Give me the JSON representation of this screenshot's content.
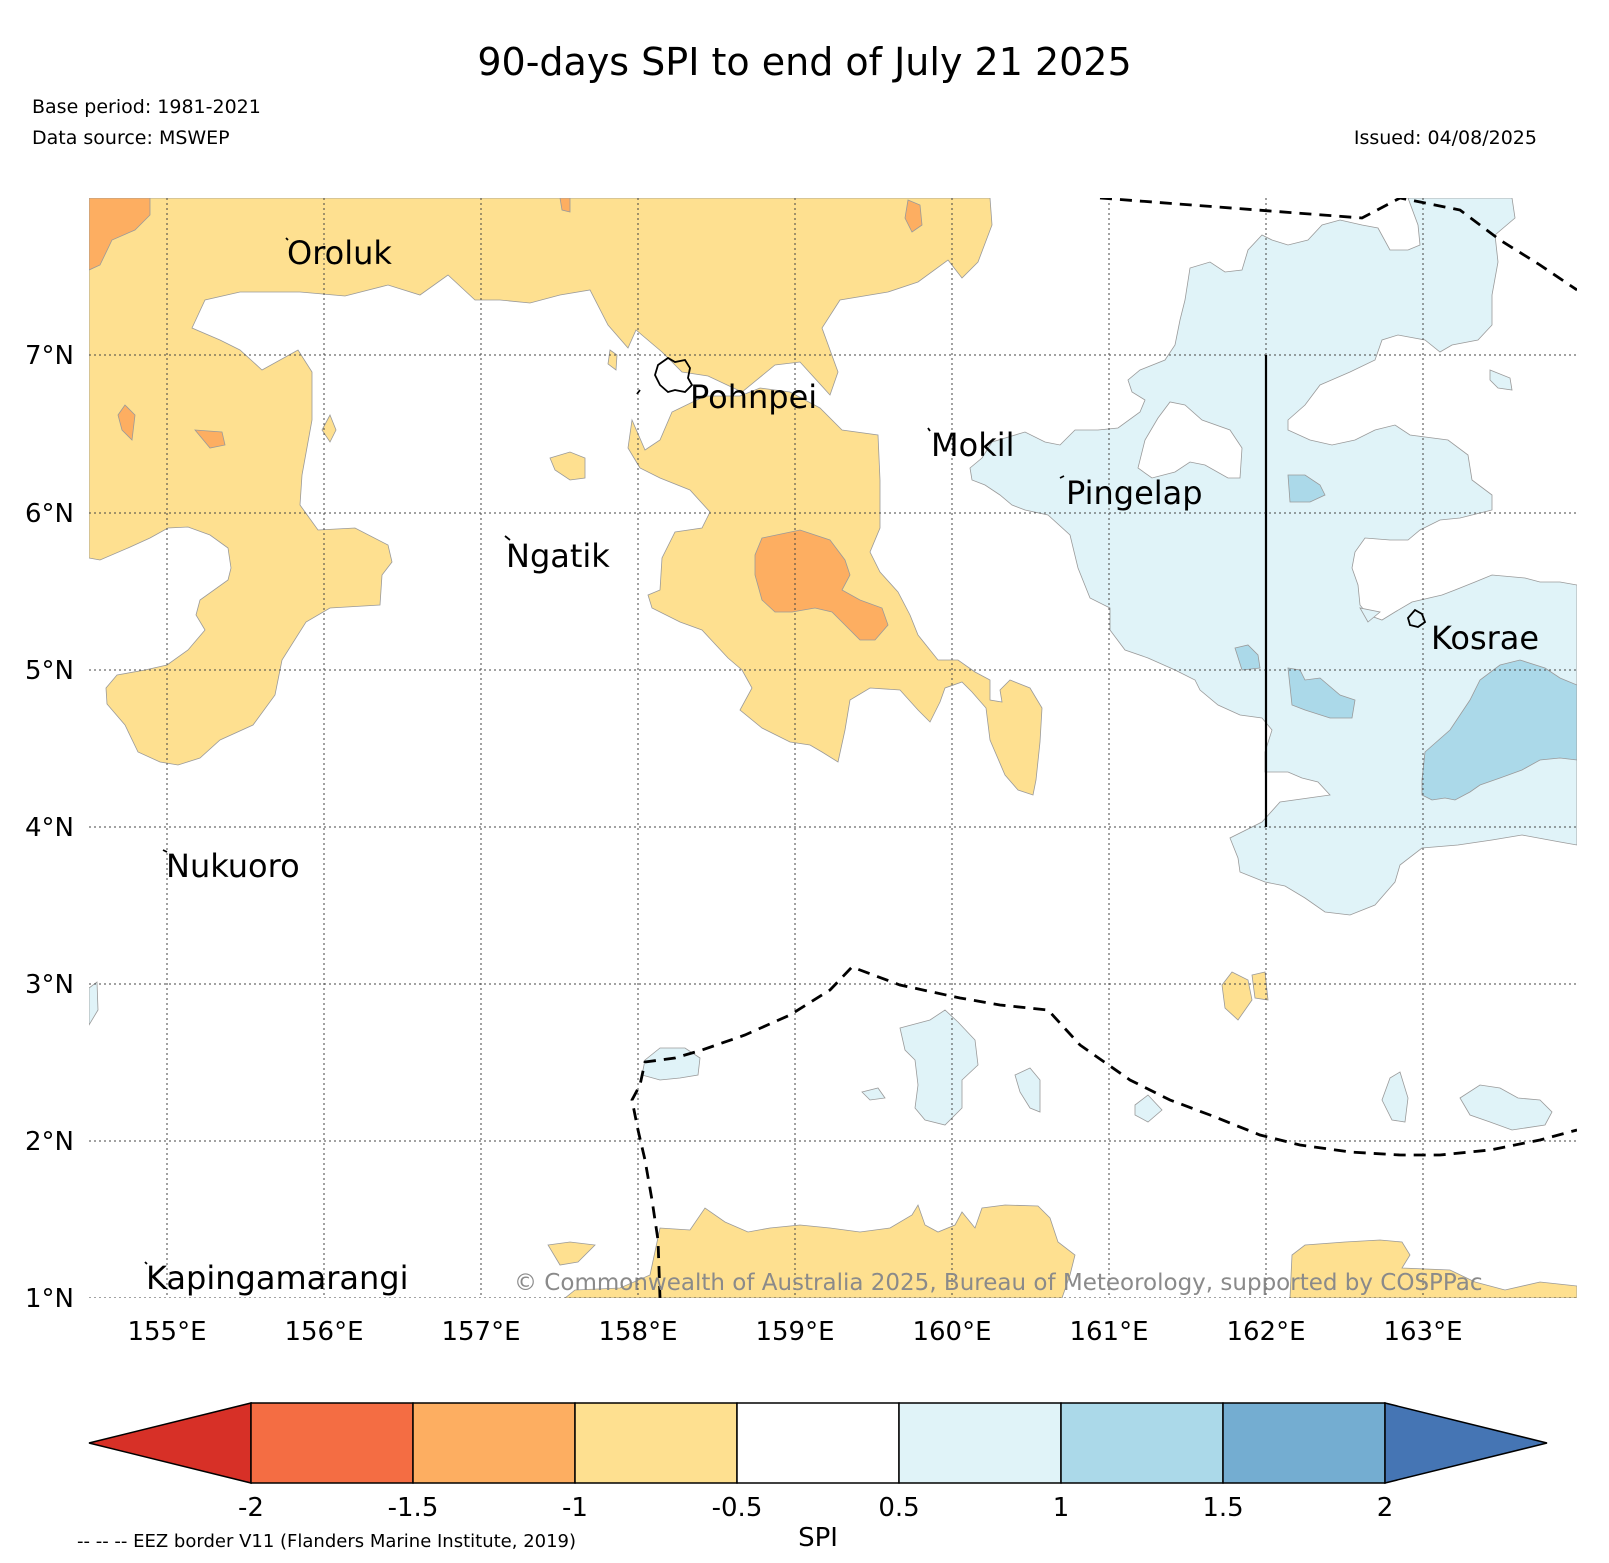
{
  "title": "90-days SPI to end of July 21 2025",
  "base_period": "Base period: 1981-2021",
  "data_source": "Data source: MSWEP",
  "issued": "Issued: 04/08/2025",
  "map": {
    "lon_ticks": [
      "155°E",
      "156°E",
      "157°E",
      "158°E",
      "159°E",
      "160°E",
      "161°E",
      "162°E",
      "163°E"
    ],
    "lat_ticks": [
      "7°N",
      "6°N",
      "5°N",
      "4°N",
      "3°N",
      "2°N",
      "1°N"
    ],
    "places": [
      "Oroluk",
      "Pohnpei",
      "Mokil",
      "Pingelap",
      "Ngatik",
      "Kosrae",
      "Nukuoro",
      "Kapingamarangi"
    ],
    "copyright": "© Commonwealth of Australia 2025, Bureau of Meteorology, supported by COSPPac"
  },
  "colorbar": {
    "title": "SPI",
    "tick_labels": [
      "-2",
      "-1.5",
      "-1",
      "-0.5",
      "0.5",
      "1",
      "1.5",
      "2"
    ],
    "colors": [
      "#d73027",
      "#f46d43",
      "#fdae61",
      "#fee090",
      "#ffffff",
      "#e0f3f8",
      "#abd9e9",
      "#74add1",
      "#4575b4"
    ]
  },
  "footnote": "-- -- -- EEZ border V11 (Flanders Marine Institute, 2019)",
  "colors": {
    "dry_mild": "#fee090",
    "dry_moderate": "#fdae61",
    "wet_mild": "#e0f3f8",
    "wet_moderate": "#abd9e9"
  }
}
